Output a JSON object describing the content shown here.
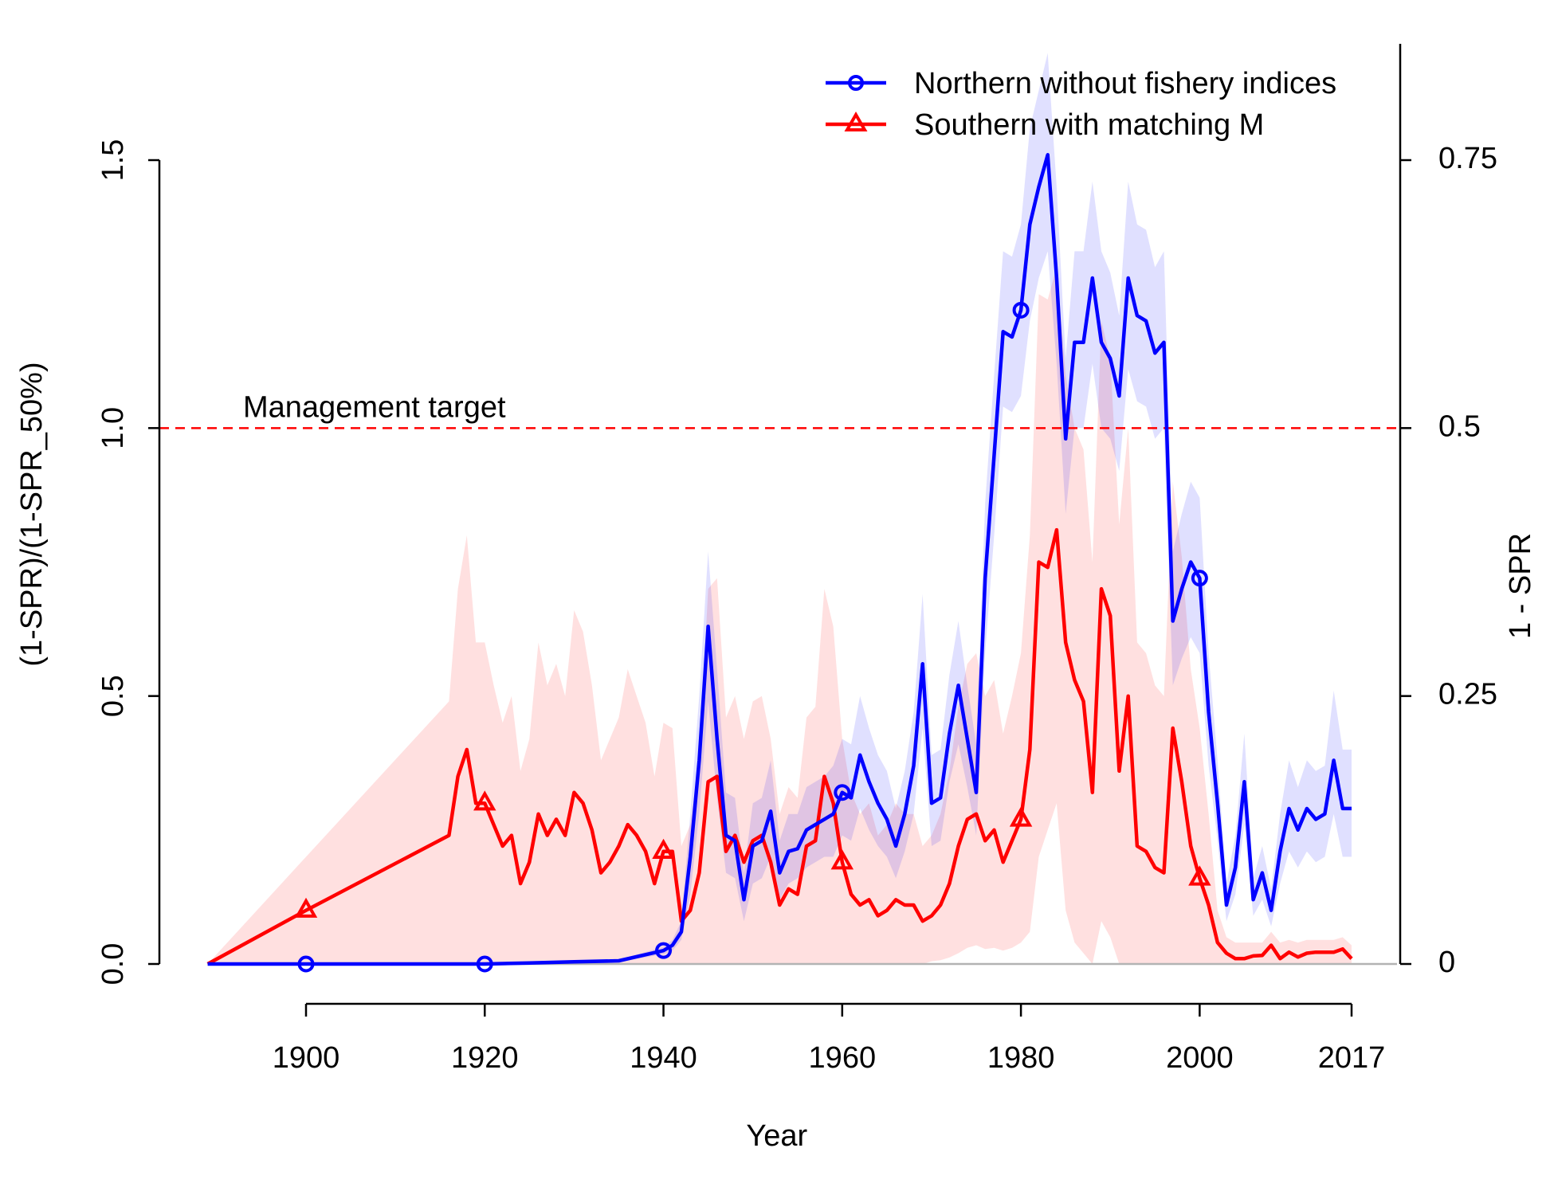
{
  "chart_data": {
    "type": "line",
    "xlabel": "Year",
    "ylabel": "(1-SPR)/(1-SPR_50%)",
    "y2label": "1 - SPR",
    "xlim": [
      1889,
      2017
    ],
    "ylim": [
      0,
      1.5
    ],
    "x_ticks": [
      1900,
      1920,
      1940,
      1960,
      1980,
      2000,
      2017
    ],
    "y_ticks": [
      "0.0",
      "0.5",
      "1.0",
      "1.5"
    ],
    "y2_ticks": [
      "0",
      "0.25",
      "0.5",
      "0.75"
    ],
    "legend_position": "top-right",
    "grid": false,
    "reference_line": {
      "value": 1.0,
      "label": "Management target",
      "color": "#ff0000",
      "style": "dashed"
    },
    "series": [
      {
        "name": "Northern without fishery indices",
        "color": "#0000ff",
        "marker": "circle",
        "marker_every_years": [
          1900,
          1920,
          1940,
          1960,
          1980,
          2000
        ],
        "x": [
          1889,
          1900,
          1910,
          1920,
          1925,
          1930,
          1935,
          1940,
          1941,
          1942,
          1943,
          1944,
          1945,
          1946,
          1947,
          1948,
          1949,
          1950,
          1951,
          1952,
          1953,
          1954,
          1955,
          1956,
          1957,
          1958,
          1959,
          1960,
          1961,
          1962,
          1963,
          1964,
          1965,
          1966,
          1967,
          1968,
          1969,
          1970,
          1971,
          1972,
          1973,
          1974,
          1975,
          1976,
          1977,
          1978,
          1979,
          1980,
          1981,
          1982,
          1983,
          1984,
          1985,
          1986,
          1987,
          1988,
          1989,
          1990,
          1991,
          1992,
          1993,
          1994,
          1995,
          1996,
          1997,
          1998,
          1999,
          2000,
          2001,
          2002,
          2003,
          2004,
          2005,
          2006,
          2007,
          2008,
          2009,
          2010,
          2011,
          2012,
          2013,
          2014,
          2015,
          2016,
          2017
        ],
        "y": [
          0,
          0,
          0,
          0,
          0.002,
          0.004,
          0.006,
          0.025,
          0.035,
          0.06,
          0.2,
          0.38,
          0.63,
          0.42,
          0.24,
          0.23,
          0.12,
          0.22,
          0.23,
          0.285,
          0.17,
          0.21,
          0.215,
          0.25,
          0.26,
          0.27,
          0.28,
          0.32,
          0.31,
          0.39,
          0.34,
          0.3,
          0.27,
          0.22,
          0.28,
          0.37,
          0.56,
          0.3,
          0.31,
          0.43,
          0.52,
          0.42,
          0.32,
          0.72,
          0.95,
          1.18,
          1.17,
          1.22,
          1.38,
          1.45,
          1.51,
          1.28,
          0.98,
          1.16,
          1.16,
          1.28,
          1.16,
          1.13,
          1.06,
          1.28,
          1.21,
          1.2,
          1.14,
          1.16,
          0.64,
          0.7,
          0.75,
          0.72,
          0.47,
          0.3,
          0.11,
          0.18,
          0.34,
          0.12,
          0.17,
          0.1,
          0.21,
          0.29,
          0.25,
          0.29,
          0.27,
          0.28,
          0.38,
          0.29,
          0.29
        ],
        "lower": [
          0,
          0,
          0,
          0,
          0.001,
          0.003,
          0.004,
          0.018,
          0.025,
          0.045,
          0.13,
          0.28,
          0.49,
          0.31,
          0.17,
          0.16,
          0.08,
          0.15,
          0.16,
          0.2,
          0.12,
          0.15,
          0.16,
          0.18,
          0.19,
          0.2,
          0.2,
          0.24,
          0.23,
          0.29,
          0.25,
          0.22,
          0.2,
          0.16,
          0.21,
          0.28,
          0.44,
          0.22,
          0.23,
          0.34,
          0.41,
          0.33,
          0.24,
          0.58,
          0.8,
          1.04,
          1.03,
          1.06,
          1.2,
          1.28,
          1.33,
          1.12,
          0.84,
          1.0,
          1.0,
          1.12,
          1.0,
          0.98,
          0.92,
          1.11,
          1.05,
          1.04,
          0.98,
          1.0,
          0.52,
          0.57,
          0.61,
          0.58,
          0.37,
          0.23,
          0.08,
          0.13,
          0.26,
          0.09,
          0.12,
          0.07,
          0.15,
          0.21,
          0.18,
          0.21,
          0.19,
          0.2,
          0.28,
          0.2,
          0.2
        ],
        "upper": [
          0,
          0,
          0,
          0,
          0.003,
          0.005,
          0.008,
          0.032,
          0.045,
          0.08,
          0.28,
          0.5,
          0.77,
          0.55,
          0.32,
          0.31,
          0.17,
          0.3,
          0.31,
          0.38,
          0.23,
          0.28,
          0.28,
          0.33,
          0.34,
          0.35,
          0.37,
          0.42,
          0.41,
          0.5,
          0.44,
          0.39,
          0.36,
          0.29,
          0.36,
          0.47,
          0.69,
          0.39,
          0.4,
          0.54,
          0.64,
          0.52,
          0.41,
          0.86,
          1.1,
          1.33,
          1.32,
          1.38,
          1.56,
          1.63,
          1.7,
          1.45,
          1.13,
          1.33,
          1.33,
          1.46,
          1.33,
          1.29,
          1.21,
          1.46,
          1.38,
          1.37,
          1.3,
          1.33,
          0.77,
          0.84,
          0.9,
          0.87,
          0.58,
          0.38,
          0.15,
          0.24,
          0.43,
          0.16,
          0.22,
          0.14,
          0.28,
          0.38,
          0.33,
          0.38,
          0.36,
          0.37,
          0.51,
          0.4,
          0.4
        ]
      },
      {
        "name": "Southern with matching M",
        "color": "#ff0000",
        "marker": "triangle",
        "marker_every_years": [
          1900,
          1920,
          1940,
          1960,
          1980,
          2000
        ],
        "x": [
          1889,
          1900,
          1916,
          1917,
          1918,
          1919,
          1920,
          1921,
          1922,
          1923,
          1924,
          1925,
          1926,
          1927,
          1928,
          1929,
          1930,
          1931,
          1932,
          1933,
          1934,
          1935,
          1936,
          1937,
          1938,
          1939,
          1940,
          1941,
          1942,
          1943,
          1944,
          1945,
          1946,
          1947,
          1948,
          1949,
          1950,
          1951,
          1952,
          1953,
          1954,
          1955,
          1956,
          1957,
          1958,
          1959,
          1960,
          1961,
          1962,
          1963,
          1964,
          1965,
          1966,
          1967,
          1968,
          1969,
          1970,
          1971,
          1972,
          1973,
          1974,
          1975,
          1976,
          1977,
          1978,
          1979,
          1980,
          1981,
          1982,
          1983,
          1984,
          1985,
          1986,
          1987,
          1988,
          1989,
          1990,
          1991,
          1992,
          1993,
          1994,
          1995,
          1996,
          1997,
          1998,
          1999,
          2000,
          2001,
          2002,
          2003,
          2004,
          2005,
          2006,
          2007,
          2008,
          2009,
          2010,
          2011,
          2012,
          2013,
          2014,
          2015,
          2016,
          2017
        ],
        "y": [
          0,
          0.1,
          0.24,
          0.35,
          0.4,
          0.3,
          0.3,
          0.26,
          0.22,
          0.24,
          0.15,
          0.19,
          0.28,
          0.24,
          0.27,
          0.24,
          0.32,
          0.3,
          0.25,
          0.17,
          0.19,
          0.22,
          0.26,
          0.24,
          0.21,
          0.15,
          0.21,
          0.21,
          0.08,
          0.1,
          0.17,
          0.34,
          0.35,
          0.21,
          0.24,
          0.19,
          0.23,
          0.24,
          0.19,
          0.11,
          0.14,
          0.13,
          0.22,
          0.23,
          0.35,
          0.3,
          0.19,
          0.13,
          0.11,
          0.12,
          0.09,
          0.1,
          0.12,
          0.11,
          0.11,
          0.08,
          0.09,
          0.11,
          0.15,
          0.22,
          0.27,
          0.28,
          0.23,
          0.25,
          0.19,
          0.23,
          0.27,
          0.4,
          0.75,
          0.74,
          0.81,
          0.6,
          0.53,
          0.49,
          0.32,
          0.7,
          0.65,
          0.36,
          0.5,
          0.22,
          0.21,
          0.18,
          0.17,
          0.44,
          0.34,
          0.22,
          0.16,
          0.11,
          0.04,
          0.02,
          0.01,
          0.01,
          0.015,
          0.016,
          0.035,
          0.01,
          0.022,
          0.013,
          0.02,
          0.022,
          0.022,
          0.022,
          0.028,
          0.01
        ],
        "lower": [
          0,
          0,
          0,
          0,
          0,
          0,
          0,
          0,
          0,
          0,
          0,
          0,
          0,
          0,
          0,
          0,
          0,
          0,
          0,
          0,
          0,
          0,
          0,
          0,
          0,
          0,
          0,
          0,
          0,
          0,
          0,
          0,
          0,
          0,
          0,
          0,
          0,
          0,
          0,
          0,
          0,
          0,
          0,
          0,
          0,
          0,
          0,
          0,
          0,
          0,
          0,
          0,
          0,
          0,
          0,
          0,
          0.005,
          0.007,
          0.012,
          0.02,
          0.03,
          0.035,
          0.028,
          0.03,
          0.025,
          0.03,
          0.04,
          0.06,
          0.2,
          0.25,
          0.3,
          0.1,
          0.04,
          0.02,
          0,
          0.08,
          0.05,
          0,
          0,
          0,
          0,
          0,
          0,
          0,
          0,
          0,
          0,
          0,
          0,
          0,
          0,
          0,
          0,
          0,
          0,
          0,
          0,
          0,
          0,
          0,
          0,
          0,
          0,
          0
        ],
        "upper": [
          0,
          0.2,
          0.49,
          0.7,
          0.8,
          0.6,
          0.6,
          0.52,
          0.45,
          0.5,
          0.36,
          0.42,
          0.6,
          0.52,
          0.56,
          0.5,
          0.66,
          0.62,
          0.52,
          0.38,
          0.42,
          0.46,
          0.55,
          0.5,
          0.45,
          0.35,
          0.45,
          0.44,
          0.22,
          0.26,
          0.38,
          0.7,
          0.72,
          0.46,
          0.5,
          0.42,
          0.49,
          0.5,
          0.42,
          0.28,
          0.33,
          0.31,
          0.46,
          0.48,
          0.7,
          0.63,
          0.42,
          0.32,
          0.28,
          0.3,
          0.24,
          0.26,
          0.3,
          0.28,
          0.28,
          0.22,
          0.24,
          0.28,
          0.36,
          0.48,
          0.56,
          0.58,
          0.5,
          0.53,
          0.43,
          0.5,
          0.58,
          0.8,
          1.25,
          1.24,
          1.3,
          1.1,
          1.0,
          0.96,
          0.75,
          1.2,
          1.13,
          0.82,
          1.0,
          0.6,
          0.58,
          0.52,
          0.5,
          0.9,
          0.76,
          0.55,
          0.44,
          0.28,
          0.1,
          0.05,
          0.04,
          0.04,
          0.04,
          0.04,
          0.06,
          0.04,
          0.045,
          0.04,
          0.045,
          0.045,
          0.045,
          0.045,
          0.05,
          0.035
        ]
      }
    ]
  }
}
